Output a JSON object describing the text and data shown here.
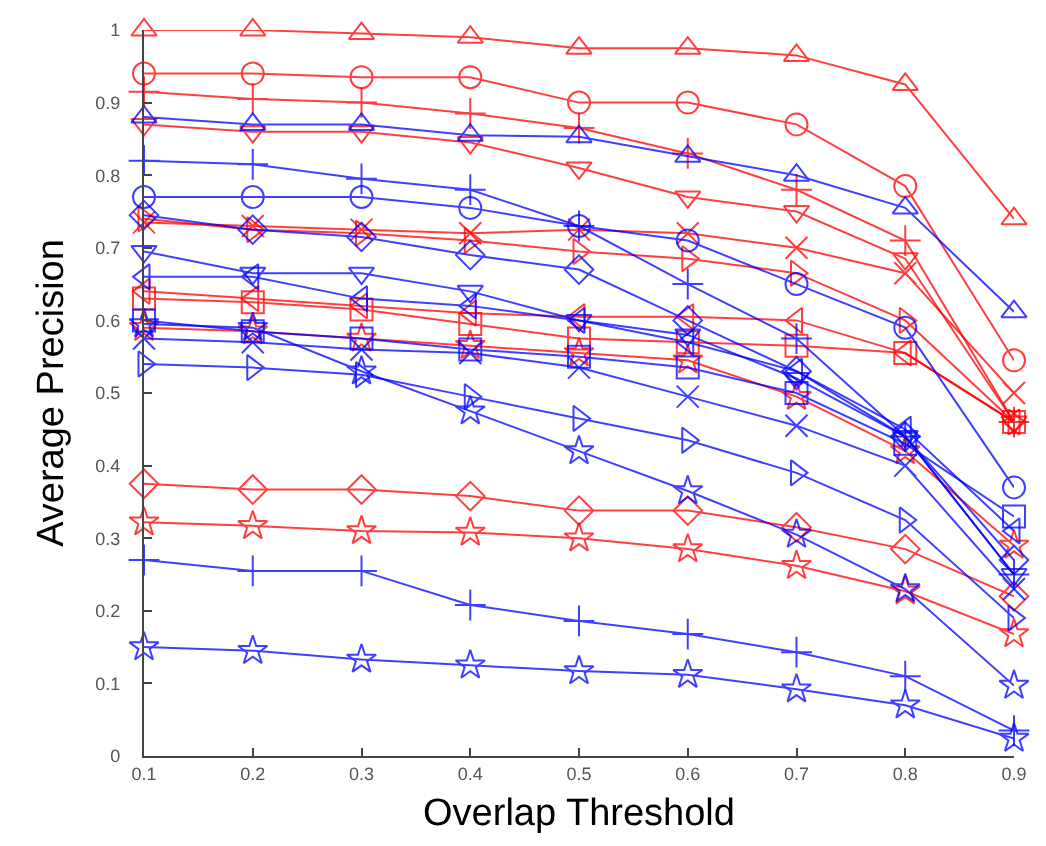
{
  "chart_data": {
    "type": "line",
    "xlabel": "Overlap Threshold",
    "ylabel": "Average Precision",
    "x": [
      0.1,
      0.2,
      0.3,
      0.4,
      0.5,
      0.6,
      0.7,
      0.8,
      0.9
    ],
    "xlim": [
      0.1,
      0.9
    ],
    "xticks": [
      0.1,
      0.2,
      0.3,
      0.4,
      0.5,
      0.6,
      0.7,
      0.8,
      0.9
    ],
    "ylim": [
      0,
      1
    ],
    "yticks": [
      0,
      0.1,
      0.2,
      0.3,
      0.4,
      0.5,
      0.6,
      0.7,
      0.8,
      0.9,
      1
    ],
    "line_style": "solid",
    "series": [
      {
        "color": "#ff0000",
        "marker": "triangle",
        "values": [
          1.0,
          1.0,
          0.995,
          0.99,
          0.975,
          0.975,
          0.965,
          0.925,
          0.74
        ]
      },
      {
        "color": "#ff0000",
        "marker": "circle",
        "values": [
          0.94,
          0.94,
          0.935,
          0.935,
          0.9,
          0.9,
          0.87,
          0.785,
          0.545
        ]
      },
      {
        "color": "#ff0000",
        "marker": "cross",
        "values": [
          0.915,
          0.905,
          0.9,
          0.885,
          0.865,
          0.83,
          0.78,
          0.71,
          0.46
        ]
      },
      {
        "color": "#ff0000",
        "marker": "triangle-down",
        "values": [
          0.87,
          0.86,
          0.86,
          0.845,
          0.81,
          0.77,
          0.75,
          0.685,
          0.46
        ]
      },
      {
        "color": "#ff0000",
        "marker": "x",
        "values": [
          0.735,
          0.73,
          0.725,
          0.72,
          0.725,
          0.72,
          0.7,
          0.665,
          0.5
        ]
      },
      {
        "color": "#ff0000",
        "marker": "triangle-right",
        "values": [
          0.74,
          0.725,
          0.72,
          0.71,
          0.695,
          0.685,
          0.665,
          0.6,
          0.46
        ]
      },
      {
        "color": "#ff0000",
        "marker": "triangle-left",
        "values": [
          0.64,
          0.63,
          0.62,
          0.61,
          0.605,
          0.605,
          0.6,
          0.555,
          0.46
        ]
      },
      {
        "color": "#ff0000",
        "marker": "square",
        "values": [
          0.63,
          0.625,
          0.615,
          0.595,
          0.575,
          0.57,
          0.565,
          0.555,
          0.46
        ]
      },
      {
        "color": "#ff0000",
        "marker": "star",
        "values": [
          0.59,
          0.585,
          0.575,
          0.565,
          0.555,
          0.545,
          0.495,
          0.42,
          0.29
        ]
      },
      {
        "color": "#ff0000",
        "marker": "diamond",
        "values": [
          0.375,
          0.367,
          0.367,
          0.358,
          0.338,
          0.338,
          0.315,
          0.285,
          0.22
        ]
      },
      {
        "color": "#ff0000",
        "marker": "star",
        "values": [
          0.322,
          0.317,
          0.31,
          0.308,
          0.3,
          0.285,
          0.262,
          0.227,
          0.168
        ]
      },
      {
        "color": "#0000ff",
        "marker": "triangle",
        "values": [
          0.88,
          0.87,
          0.87,
          0.855,
          0.853,
          0.826,
          0.8,
          0.755,
          0.612
        ]
      },
      {
        "color": "#0000ff",
        "marker": "cross",
        "values": [
          0.82,
          0.815,
          0.795,
          0.78,
          0.73,
          0.65,
          0.575,
          0.44,
          0.25
        ]
      },
      {
        "color": "#0000ff",
        "marker": "circle",
        "values": [
          0.77,
          0.77,
          0.77,
          0.755,
          0.73,
          0.71,
          0.65,
          0.59,
          0.37
        ]
      },
      {
        "color": "#0000ff",
        "marker": "diamond",
        "values": [
          0.745,
          0.725,
          0.715,
          0.69,
          0.67,
          0.6,
          0.53,
          0.44,
          0.27
        ]
      },
      {
        "color": "#0000ff",
        "marker": "triangle-down",
        "values": [
          0.695,
          0.665,
          0.665,
          0.64,
          0.6,
          0.58,
          0.52,
          0.44,
          0.25
        ]
      },
      {
        "color": "#0000ff",
        "marker": "triangle-left",
        "values": [
          0.66,
          0.66,
          0.63,
          0.62,
          0.6,
          0.57,
          0.53,
          0.45,
          0.31
        ]
      },
      {
        "color": "#0000ff",
        "marker": "square",
        "values": [
          0.6,
          0.585,
          0.575,
          0.56,
          0.55,
          0.535,
          0.5,
          0.43,
          0.33
        ]
      },
      {
        "color": "#0000ff",
        "marker": "x",
        "values": [
          0.575,
          0.57,
          0.56,
          0.555,
          0.535,
          0.495,
          0.455,
          0.4,
          0.23
        ]
      },
      {
        "color": "#0000ff",
        "marker": "triangle-right",
        "values": [
          0.54,
          0.535,
          0.525,
          0.495,
          0.465,
          0.435,
          0.39,
          0.325,
          0.19
        ]
      },
      {
        "color": "#0000ff",
        "marker": "star",
        "values": [
          0.595,
          0.59,
          0.53,
          0.475,
          0.42,
          0.365,
          0.305,
          0.23,
          0.097
        ]
      },
      {
        "color": "#0000ff",
        "marker": "cross",
        "values": [
          0.27,
          0.255,
          0.255,
          0.208,
          0.186,
          0.168,
          0.143,
          0.11,
          0.035
        ]
      },
      {
        "color": "#0000ff",
        "marker": "star",
        "values": [
          0.15,
          0.145,
          0.133,
          0.125,
          0.117,
          0.112,
          0.092,
          0.07,
          0.024
        ]
      }
    ]
  }
}
